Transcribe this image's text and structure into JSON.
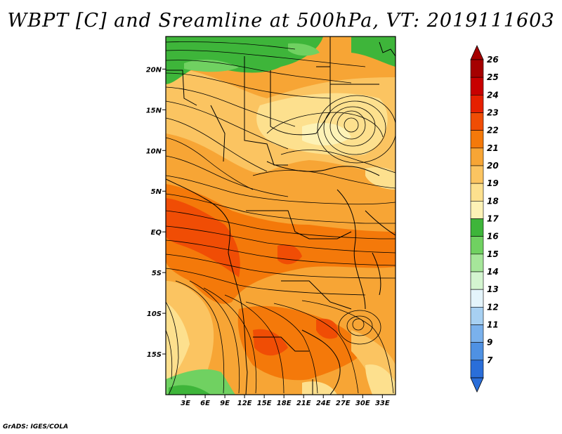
{
  "title": "WBPT [C] and Sreamline at 500hPa, VT: 2019111603",
  "credit": "GrADS: IGES/COLA",
  "map": {
    "lon_range": [
      0,
      35
    ],
    "lat_range": [
      -20,
      24
    ],
    "lat_labels": [
      "20N",
      "15N",
      "10N",
      "5N",
      "EQ",
      "5S",
      "10S",
      "15S"
    ],
    "lat_values": [
      20,
      15,
      10,
      5,
      0,
      -5,
      -10,
      -15
    ],
    "lon_labels": [
      "3E",
      "6E",
      "9E",
      "12E",
      "15E",
      "18E",
      "21E",
      "24E",
      "27E",
      "30E",
      "33E"
    ],
    "lon_values": [
      3,
      6,
      9,
      12,
      15,
      18,
      21,
      24,
      27,
      30,
      33
    ]
  },
  "colorbar": {
    "labels": [
      "26",
      "25",
      "24",
      "23",
      "22",
      "21",
      "20",
      "19",
      "18",
      "17",
      "16",
      "15",
      "14",
      "13",
      "12",
      "11",
      "9",
      "7"
    ],
    "colors": [
      "#a50000",
      "#c80000",
      "#e62000",
      "#f04d05",
      "#f4790a",
      "#f7a535",
      "#fbc461",
      "#fde08e",
      "#fdf2b6",
      "#3eb53a",
      "#70d161",
      "#a6e69a",
      "#d4f5d0",
      "#e4f4fb",
      "#a7d0f2",
      "#7ab1ec",
      "#4f91e3",
      "#2a6ed9"
    ],
    "top_color": "#a50000",
    "bottom_color": "#2a6ed9"
  }
}
